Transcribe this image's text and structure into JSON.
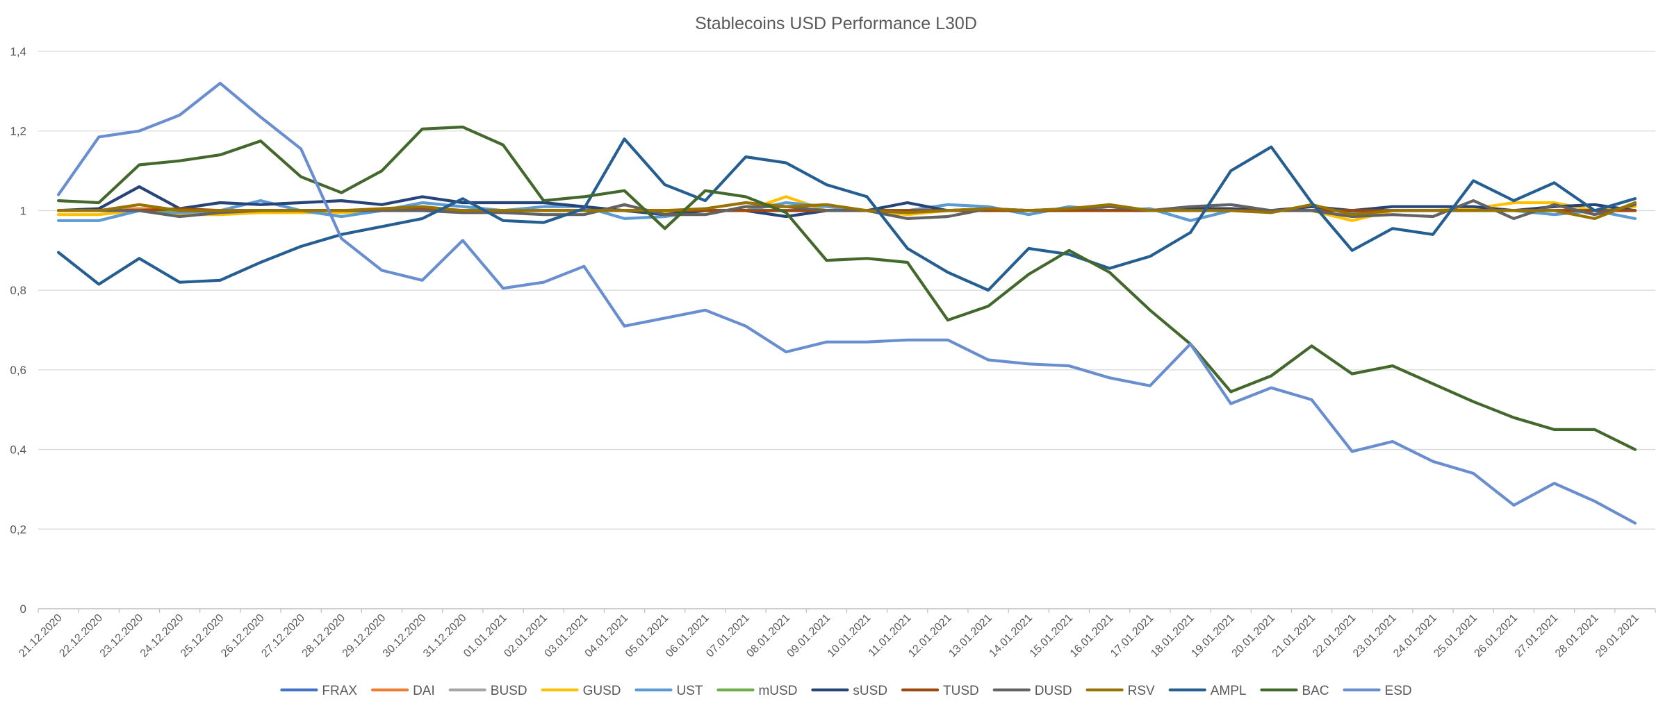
{
  "chart_data": {
    "type": "line",
    "title": "Stablecoins USD Performance L30D",
    "xlabel": "",
    "ylabel": "",
    "ylim": [
      0,
      1.4
    ],
    "yticks": [
      "0",
      "0,2",
      "0,4",
      "0,6",
      "0,8",
      "1",
      "1,2",
      "1,4"
    ],
    "ytick_values": [
      0,
      0.2,
      0.4,
      0.6,
      0.8,
      1.0,
      1.2,
      1.4
    ],
    "grid": true,
    "legend_position": "bottom",
    "categories": [
      "21.12.2020",
      "22.12.2020",
      "23.12.2020",
      "24.12.2020",
      "25.12.2020",
      "26.12.2020",
      "27.12.2020",
      "28.12.2020",
      "29.12.2020",
      "30.12.2020",
      "31.12.2020",
      "01.01.2021",
      "02.01.2021",
      "03.01.2021",
      "04.01.2021",
      "05.01.2021",
      "06.01.2021",
      "07.01.2021",
      "08.01.2021",
      "09.01.2021",
      "10.01.2021",
      "11.01.2021",
      "12.01.2021",
      "13.01.2021",
      "14.01.2021",
      "15.01.2021",
      "16.01.2021",
      "17.01.2021",
      "18.01.2021",
      "19.01.2021",
      "20.01.2021",
      "21.01.2021",
      "22.01.2021",
      "23.01.2021",
      "24.01.2021",
      "25.01.2021",
      "26.01.2021",
      "27.01.2021",
      "28.01.2021",
      "29.01.2021"
    ],
    "series": [
      {
        "name": "FRAX",
        "color": "#4472c4",
        "values": [
          1.0,
          1.0,
          1.0,
          1.0,
          1.0,
          1.0,
          1.0,
          1.0,
          1.0,
          1.0,
          1.0,
          1.0,
          1.0,
          1.0,
          1.0,
          1.0,
          1.0,
          1.0,
          1.0,
          1.0,
          1.0,
          1.0,
          1.0,
          1.0,
          1.0,
          1.0,
          1.0,
          1.0,
          1.0,
          1.0,
          1.0,
          1.0,
          1.0,
          1.0,
          1.0,
          1.0,
          1.0,
          1.0,
          1.0,
          1.0
        ]
      },
      {
        "name": "DAI",
        "color": "#ed7d31",
        "values": [
          1.0,
          1.0,
          1.005,
          1.0,
          1.0,
          1.0,
          1.0,
          1.0,
          1.0,
          1.005,
          1.0,
          1.0,
          1.0,
          1.0,
          1.0,
          1.0,
          1.0,
          1.0,
          1.0,
          1.0,
          1.0,
          1.0,
          1.0,
          1.0,
          1.0,
          1.0,
          1.0,
          1.0,
          1.0,
          1.0,
          1.0,
          1.0,
          1.0,
          1.0,
          1.0,
          1.0,
          1.0,
          1.0,
          1.0,
          1.0
        ]
      },
      {
        "name": "BUSD",
        "color": "#a5a5a5",
        "values": [
          1.0,
          1.0,
          1.0,
          1.0,
          1.0,
          1.0,
          1.0,
          1.0,
          1.0,
          1.0,
          1.0,
          1.0,
          1.0,
          1.0,
          1.0,
          1.0,
          1.0,
          1.0,
          1.0,
          1.0,
          1.0,
          1.0,
          1.0,
          1.0,
          1.0,
          1.0,
          1.0,
          1.0,
          1.0,
          1.0,
          1.0,
          1.0,
          1.0,
          1.0,
          1.0,
          1.0,
          1.0,
          1.0,
          1.0,
          1.0
        ]
      },
      {
        "name": "GUSD",
        "color": "#ffc000",
        "values": [
          0.99,
          0.99,
          1.0,
          0.99,
          0.99,
          0.995,
          0.995,
          0.995,
          1.0,
          1.0,
          1.0,
          1.0,
          1.0,
          1.0,
          1.0,
          0.995,
          1.0,
          1.0,
          1.035,
          1.0,
          1.0,
          0.99,
          1.0,
          1.0,
          1.0,
          1.0,
          1.0,
          1.0,
          1.0,
          1.0,
          1.0,
          1.0,
          0.975,
          1.0,
          1.0,
          1.005,
          1.02,
          1.02,
          1.0,
          1.01
        ]
      },
      {
        "name": "UST",
        "color": "#5b9bd5",
        "values": [
          0.975,
          0.975,
          1.0,
          0.995,
          1.0,
          1.025,
          1.0,
          0.985,
          1.0,
          1.02,
          1.01,
          1.0,
          1.01,
          1.01,
          0.98,
          0.985,
          1.0,
          1.0,
          1.02,
          1.01,
          1.0,
          1.0,
          1.015,
          1.01,
          0.99,
          1.01,
          1.0,
          1.005,
          0.975,
          1.0,
          1.0,
          1.01,
          0.995,
          1.0,
          1.0,
          1.0,
          1.0,
          0.99,
          1.0,
          0.98
        ]
      },
      {
        "name": "mUSD",
        "color": "#70ad47",
        "values": [
          1.0,
          1.0,
          1.0,
          1.0,
          1.0,
          1.0,
          1.0,
          1.0,
          1.0,
          1.0,
          1.0,
          1.0,
          1.0,
          1.0,
          1.0,
          1.0,
          1.0,
          1.0,
          1.0,
          1.0,
          1.0,
          1.0,
          1.0,
          1.0,
          1.0,
          1.0,
          1.0,
          1.0,
          1.0,
          1.0,
          1.0,
          1.0,
          1.0,
          1.0,
          1.0,
          1.0,
          1.0,
          1.0,
          1.0,
          1.0
        ]
      },
      {
        "name": "sUSD",
        "color": "#264478",
        "values": [
          1.0,
          1.005,
          1.06,
          1.005,
          1.02,
          1.015,
          1.02,
          1.025,
          1.015,
          1.035,
          1.02,
          1.02,
          1.02,
          1.01,
          1.0,
          0.99,
          1.0,
          1.0,
          0.985,
          1.0,
          1.0,
          1.02,
          1.0,
          1.005,
          1.0,
          1.0,
          1.0,
          1.0,
          1.005,
          1.005,
          1.0,
          1.01,
          1.0,
          1.01,
          1.01,
          1.01,
          1.0,
          1.01,
          1.015,
          1.0
        ]
      },
      {
        "name": "TUSD",
        "color": "#9e480e",
        "values": [
          1.0,
          1.0,
          1.0,
          1.005,
          1.0,
          1.0,
          1.0,
          1.0,
          1.0,
          1.005,
          1.0,
          1.0,
          1.0,
          1.0,
          1.0,
          1.0,
          1.0,
          1.0,
          1.0,
          1.0,
          1.0,
          1.0,
          1.0,
          1.0,
          1.0,
          1.0,
          1.0,
          1.0,
          1.0,
          1.0,
          1.0,
          1.0,
          1.0,
          1.0,
          1.0,
          1.0,
          1.0,
          1.0,
          1.0,
          1.0
        ]
      },
      {
        "name": "DUSD",
        "color": "#636363",
        "values": [
          1.0,
          1.0,
          1.0,
          0.985,
          0.995,
          1.0,
          1.0,
          1.0,
          1.0,
          1.0,
          0.995,
          0.995,
          0.99,
          0.99,
          1.015,
          0.99,
          0.99,
          1.01,
          1.01,
          1.0,
          1.0,
          0.98,
          0.985,
          1.005,
          1.0,
          1.005,
          1.01,
          1.0,
          1.01,
          1.015,
          1.0,
          1.0,
          0.985,
          0.99,
          0.985,
          1.025,
          0.98,
          1.015,
          0.99,
          1.015
        ]
      },
      {
        "name": "RSV",
        "color": "#997300",
        "values": [
          1.0,
          1.0,
          1.015,
          1.0,
          1.0,
          1.0,
          1.0,
          1.0,
          1.005,
          1.01,
          1.0,
          1.0,
          1.0,
          1.0,
          1.0,
          1.0,
          1.005,
          1.02,
          1.01,
          1.015,
          1.0,
          0.995,
          1.0,
          1.005,
          1.0,
          1.005,
          1.015,
          1.0,
          1.0,
          1.0,
          0.995,
          1.015,
          0.99,
          1.0,
          1.0,
          1.0,
          1.0,
          1.0,
          0.98,
          1.02
        ]
      },
      {
        "name": "AMPL",
        "color": "#255e91",
        "values": [
          0.895,
          0.815,
          0.88,
          0.82,
          0.825,
          0.87,
          0.91,
          0.94,
          0.96,
          0.98,
          1.03,
          0.975,
          0.97,
          1.005,
          1.18,
          1.065,
          1.025,
          1.135,
          1.12,
          1.065,
          1.035,
          0.905,
          0.845,
          0.8,
          0.905,
          0.89,
          0.855,
          0.885,
          0.945,
          1.1,
          1.16,
          1.02,
          0.9,
          0.955,
          0.94,
          1.075,
          1.025,
          1.07,
          1.0,
          1.03
        ]
      },
      {
        "name": "BAC",
        "color": "#43682b",
        "values": [
          1.025,
          1.02,
          1.115,
          1.125,
          1.14,
          1.175,
          1.085,
          1.045,
          1.1,
          1.205,
          1.21,
          1.165,
          1.025,
          1.035,
          1.05,
          0.955,
          1.05,
          1.035,
          0.995,
          0.875,
          0.88,
          0.87,
          0.725,
          0.76,
          0.84,
          0.9,
          0.845,
          0.75,
          0.665,
          0.545,
          0.585,
          0.66,
          0.59,
          0.61,
          0.565,
          0.52,
          0.48,
          0.45,
          0.45,
          0.4
        ]
      },
      {
        "name": "ESD",
        "color": "#698ed0",
        "values": [
          1.04,
          1.185,
          1.2,
          1.24,
          1.32,
          1.235,
          1.155,
          0.93,
          0.85,
          0.825,
          0.925,
          0.805,
          0.82,
          0.86,
          0.71,
          0.73,
          0.75,
          0.71,
          0.645,
          0.67,
          0.67,
          0.675,
          0.675,
          0.625,
          0.615,
          0.61,
          0.58,
          0.56,
          0.665,
          0.515,
          0.555,
          0.525,
          0.395,
          0.42,
          0.37,
          0.34,
          0.26,
          0.315,
          0.27,
          0.215
        ]
      }
    ]
  }
}
